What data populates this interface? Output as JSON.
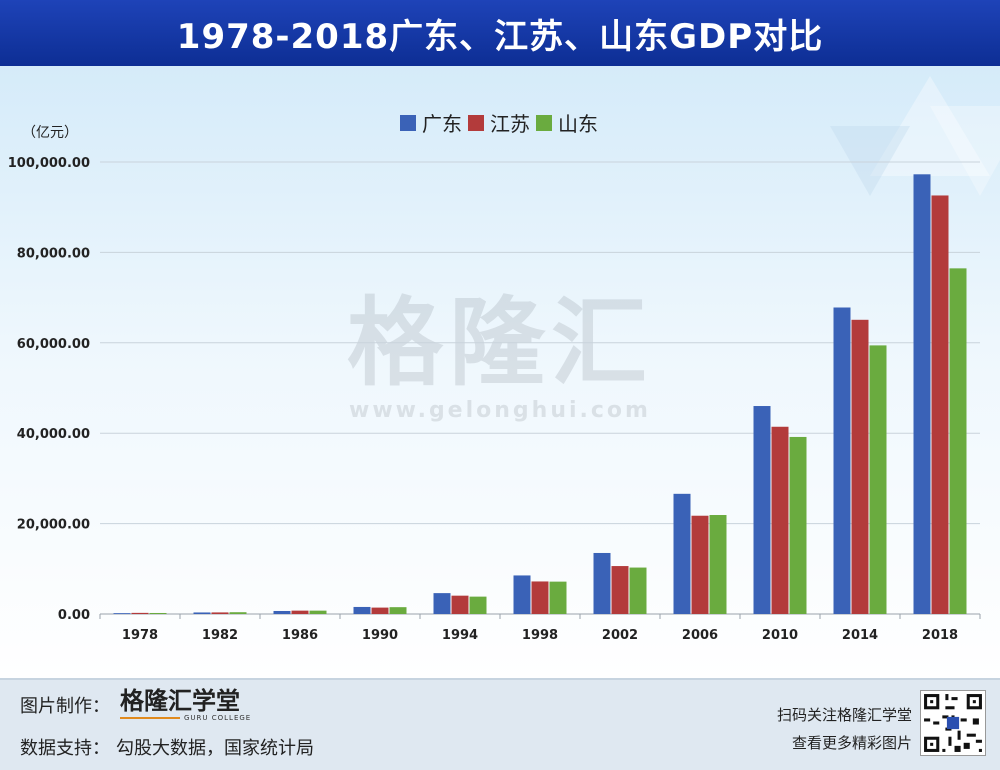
{
  "header": {
    "title": "1978-2018广东、江苏、山东GDP对比"
  },
  "unit_label": "（亿元）",
  "watermark": {
    "cn": "格隆汇",
    "url": "www.gelonghui.com"
  },
  "footer": {
    "made_by_label": "图片制作：",
    "logo_text": "格隆汇学堂",
    "logo_sub": "GURU COLLEGE",
    "source_label": "数据支持：",
    "source_value": "勾股大数据，国家统计局",
    "qr_line1": "扫码关注格隆汇学堂",
    "qr_line2": "查看更多精彩图片"
  },
  "colors": {
    "guangdong": "#3a62b7",
    "jiangsu": "#b33b3b",
    "shandong": "#6aab3f"
  },
  "chart_data": {
    "type": "bar",
    "title": "1978-2018广东、江苏、山东GDP对比",
    "xlabel": "",
    "ylabel": "（亿元）",
    "ylim": [
      0,
      100000
    ],
    "yticks": [
      "0.00",
      "20,000.00",
      "40,000.00",
      "60,000.00",
      "80,000.00",
      "100,000.00"
    ],
    "ytick_values": [
      0,
      20000,
      40000,
      60000,
      80000,
      100000
    ],
    "grid": true,
    "legend": "top-center",
    "categories": [
      "1978",
      "1982",
      "1986",
      "1990",
      "1994",
      "1998",
      "2002",
      "2006",
      "2010",
      "2014",
      "2018"
    ],
    "series": [
      {
        "name": "广东",
        "color": "#3a62b7",
        "values": [
          186,
          340,
          667,
          1559,
          4619,
          8531,
          13502,
          26588,
          46013,
          67810,
          97278
        ]
      },
      {
        "name": "江苏",
        "color": "#b33b3b",
        "values": [
          249,
          350,
          744,
          1417,
          4057,
          7200,
          10607,
          21742,
          41425,
          65088,
          92595
        ]
      },
      {
        "name": "山东",
        "color": "#6aab3f",
        "values": [
          225,
          396,
          742,
          1511,
          3844,
          7162,
          10275,
          21900,
          39170,
          59427,
          76470
        ]
      }
    ]
  }
}
